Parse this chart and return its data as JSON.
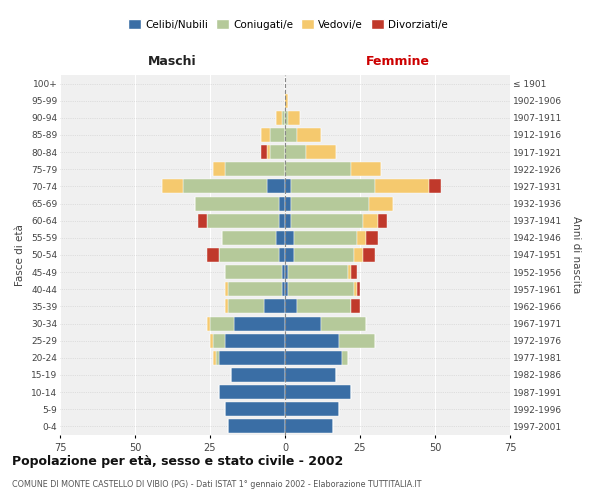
{
  "age_groups": [
    "0-4",
    "5-9",
    "10-14",
    "15-19",
    "20-24",
    "25-29",
    "30-34",
    "35-39",
    "40-44",
    "45-49",
    "50-54",
    "55-59",
    "60-64",
    "65-69",
    "70-74",
    "75-79",
    "80-84",
    "85-89",
    "90-94",
    "95-99",
    "100+"
  ],
  "birth_years": [
    "1997-2001",
    "1992-1996",
    "1987-1991",
    "1982-1986",
    "1977-1981",
    "1972-1976",
    "1967-1971",
    "1962-1966",
    "1957-1961",
    "1952-1956",
    "1947-1951",
    "1942-1946",
    "1937-1941",
    "1932-1936",
    "1927-1931",
    "1922-1926",
    "1917-1921",
    "1912-1916",
    "1907-1911",
    "1902-1906",
    "≤ 1901"
  ],
  "male_celibe": [
    19,
    20,
    22,
    18,
    22,
    20,
    17,
    7,
    1,
    1,
    2,
    3,
    2,
    2,
    6,
    0,
    0,
    0,
    0,
    0,
    0
  ],
  "male_coniugato": [
    0,
    0,
    0,
    0,
    1,
    4,
    8,
    12,
    18,
    19,
    20,
    18,
    24,
    28,
    28,
    20,
    5,
    5,
    1,
    0,
    0
  ],
  "male_vedovo": [
    0,
    0,
    0,
    0,
    1,
    1,
    1,
    1,
    1,
    0,
    0,
    0,
    0,
    0,
    7,
    4,
    1,
    3,
    2,
    0,
    0
  ],
  "male_divorziato": [
    0,
    0,
    0,
    0,
    0,
    0,
    0,
    0,
    0,
    0,
    4,
    0,
    3,
    0,
    0,
    0,
    2,
    0,
    0,
    0,
    0
  ],
  "female_celibe": [
    16,
    18,
    22,
    17,
    19,
    18,
    12,
    4,
    1,
    1,
    3,
    3,
    2,
    2,
    2,
    0,
    0,
    0,
    0,
    0,
    0
  ],
  "female_coniugato": [
    0,
    0,
    0,
    0,
    2,
    12,
    15,
    18,
    22,
    20,
    20,
    21,
    24,
    26,
    28,
    22,
    7,
    4,
    1,
    0,
    0
  ],
  "female_vedovo": [
    0,
    0,
    0,
    0,
    0,
    0,
    0,
    0,
    1,
    1,
    3,
    3,
    5,
    8,
    18,
    10,
    10,
    8,
    4,
    1,
    0
  ],
  "female_divorziato": [
    0,
    0,
    0,
    0,
    0,
    0,
    0,
    3,
    1,
    2,
    4,
    4,
    3,
    0,
    4,
    0,
    0,
    0,
    0,
    0,
    0
  ],
  "color_celibe": "#3a6ea5",
  "color_coniugato": "#b5c99a",
  "color_vedovo": "#f5c96e",
  "color_divorziato": "#c0392b",
  "title": "Popolazione per età, sesso e stato civile - 2002",
  "subtitle": "COMUNE DI MONTE CASTELLO DI VIBIO (PG) - Dati ISTAT 1° gennaio 2002 - Elaborazione TUTTITALIA.IT",
  "xlabel_left": "Maschi",
  "xlabel_right": "Femmine",
  "ylabel_left": "Fasce di età",
  "ylabel_right": "Anni di nascita",
  "xlim": 75,
  "background_color": "#ffffff",
  "grid_color": "#cccccc",
  "plot_bg": "#f0f0f0"
}
